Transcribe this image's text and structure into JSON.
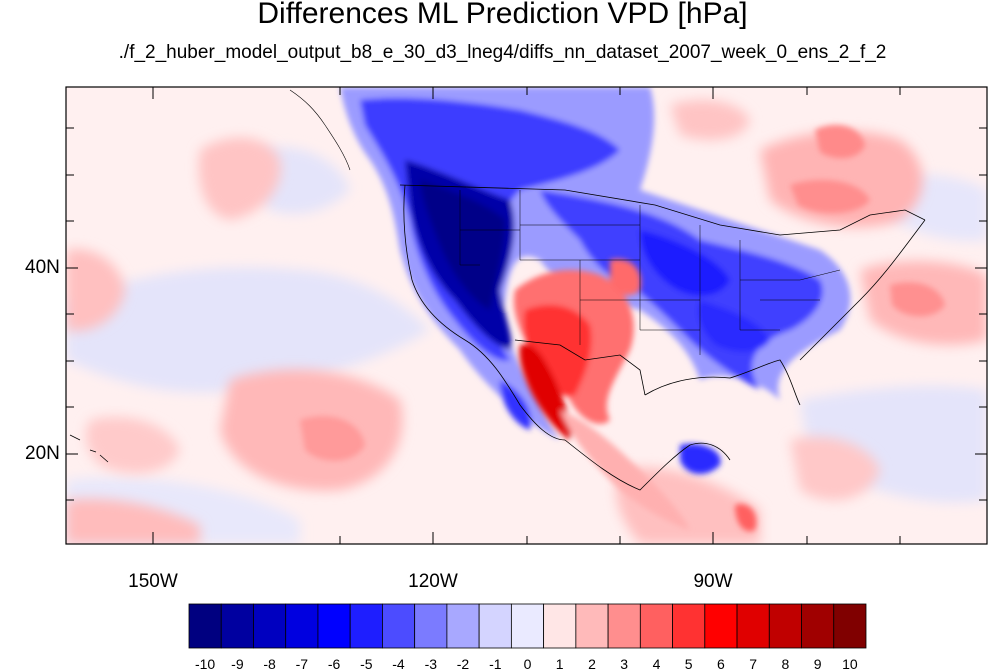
{
  "title": "Differences ML Prediction VPD [hPa]",
  "subtitle": "./f_2_huber_model_output_b8_e_30_d3_lneg4/diffs_nn_dataset_2007_week_0_ens_2_f_2",
  "lat_labels": [
    "40N",
    "20N"
  ],
  "lon_labels": [
    "150W",
    "120W",
    "90W"
  ],
  "colorbar": {
    "labels": [
      "-10",
      "-9",
      "-8",
      "-7",
      "-6",
      "-5",
      "-4",
      "-3",
      "-2",
      "-1",
      "0",
      "1",
      "2",
      "3",
      "4",
      "5",
      "6",
      "7",
      "8",
      "9",
      "10"
    ],
    "colors": [
      "#000080",
      "#0000a0",
      "#0000c0",
      "#0000e0",
      "#0000ff",
      "#1e1eff",
      "#4c4cff",
      "#7b7bff",
      "#a8a8ff",
      "#d4d4ff",
      "#eaeaff",
      "#ffe6e6",
      "#ffbaba",
      "#ff8e8e",
      "#ff6060",
      "#ff3232",
      "#ff0000",
      "#e00000",
      "#c00000",
      "#a00000",
      "#800000"
    ]
  }
}
